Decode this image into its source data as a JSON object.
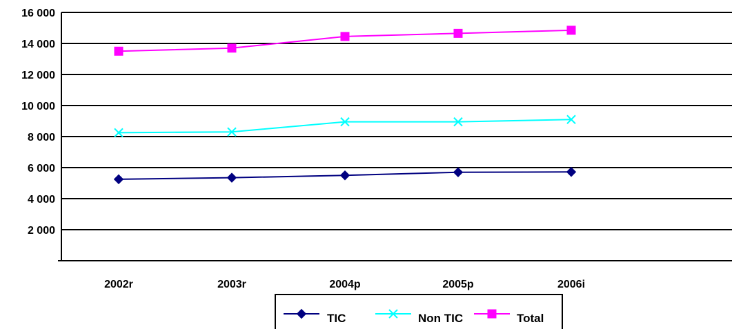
{
  "chart_data": {
    "type": "line",
    "categories": [
      "2002r",
      "2003r",
      "2004p",
      "2005p",
      "2006i"
    ],
    "series": [
      {
        "name": "TIC",
        "values": [
          5250,
          5350,
          5500,
          5700,
          5720
        ],
        "color": "#000080",
        "marker": "diamond"
      },
      {
        "name": "Non TIC",
        "values": [
          8250,
          8300,
          8950,
          8950,
          9100
        ],
        "color": "#00FFFF",
        "marker": "x"
      },
      {
        "name": "Total",
        "values": [
          13500,
          13700,
          14450,
          14650,
          14850
        ],
        "color": "#FF00FF",
        "marker": "square"
      }
    ],
    "ylim": [
      0,
      16000
    ],
    "yticks": [
      2000,
      4000,
      6000,
      8000,
      10000,
      12000,
      14000,
      16000
    ],
    "ytick_labels": [
      "2 000",
      "4 000",
      "6 000",
      "8 000",
      "10 000",
      "12 000",
      "14 000",
      "16 000"
    ],
    "grid": "horizontal",
    "legend_position": "bottom"
  }
}
